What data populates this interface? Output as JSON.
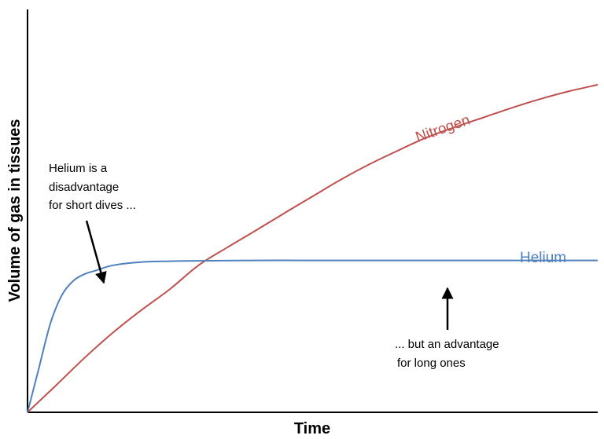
{
  "chart_data": {
    "type": "line",
    "title": "",
    "xlabel": "Time",
    "ylabel": "Volume of gas in tissues",
    "xlim": [
      0,
      100
    ],
    "ylim": [
      0,
      100
    ],
    "grid": false,
    "legend": "inline labels",
    "series": [
      {
        "name": "Nitrogen",
        "color": "#c0504d",
        "x": [
          0,
          5,
          10,
          15,
          20,
          25,
          30,
          35,
          40,
          45,
          50,
          55,
          60,
          65,
          70,
          75,
          80,
          85,
          90,
          95,
          100
        ],
        "y": [
          0,
          6.7,
          13.5,
          19.8,
          25.4,
          30.6,
          36.5,
          40.9,
          45.1,
          49.4,
          53.6,
          57.8,
          61.6,
          65.0,
          68.2,
          70.8,
          73.2,
          75.6,
          77.8,
          79.7,
          81.3
        ]
      },
      {
        "name": "Helium",
        "color": "#4f81bd",
        "x": [
          0,
          2,
          4,
          6,
          8,
          10,
          12,
          15,
          20,
          25,
          30,
          40,
          50,
          60,
          70,
          80,
          90,
          100
        ],
        "y": [
          0,
          11,
          22,
          29,
          32.6,
          34.3,
          35.2,
          36.5,
          37.3,
          37.5,
          37.6,
          37.7,
          37.7,
          37.7,
          37.7,
          37.7,
          37.7,
          37.7
        ]
      }
    ],
    "annotations": [
      {
        "lines": [
          "Helium is a",
          "disadvantage",
          "for short dives ..."
        ],
        "arrow_to": [
          13,
          36
        ]
      },
      {
        "lines": [
          "... but an advantage",
          "for long ones"
        ],
        "arrow_to": [
          74,
          31
        ]
      }
    ]
  }
}
